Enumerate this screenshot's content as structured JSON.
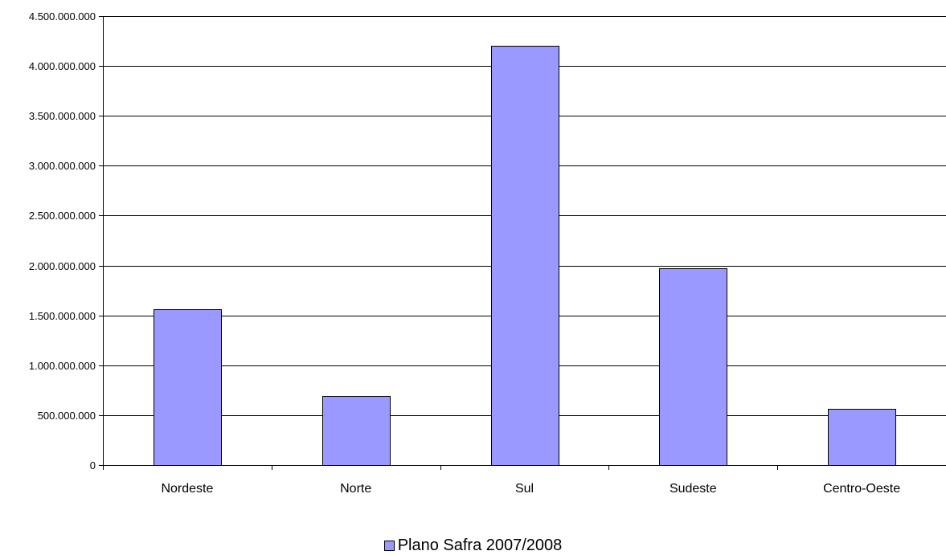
{
  "chart_data": {
    "type": "bar",
    "categories": [
      "Nordeste",
      "Norte",
      "Sul",
      "Sudeste",
      "Centro-Oeste"
    ],
    "series": [
      {
        "name": "Plano Safra 2007/2008",
        "values": [
          1560000000,
          690000000,
          4200000000,
          1975000000,
          565000000
        ]
      }
    ],
    "ylim": [
      0,
      4500000000
    ],
    "yticks": [
      0,
      500000000,
      1000000000,
      1500000000,
      2000000000,
      2500000000,
      3000000000,
      3500000000,
      4000000000,
      4500000000
    ],
    "ytick_labels": [
      "0",
      "500.000.000",
      "1.000.000.000",
      "1.500.000.000",
      "2.000.000.000",
      "2.500.000.000",
      "3.000.000.000",
      "3.500.000.000",
      "4.000.000.000",
      "4.500.000.000"
    ],
    "grid": true,
    "legend_position": "bottom",
    "bar_color": "#9999ff",
    "title": "",
    "xlabel": "",
    "ylabel": ""
  }
}
